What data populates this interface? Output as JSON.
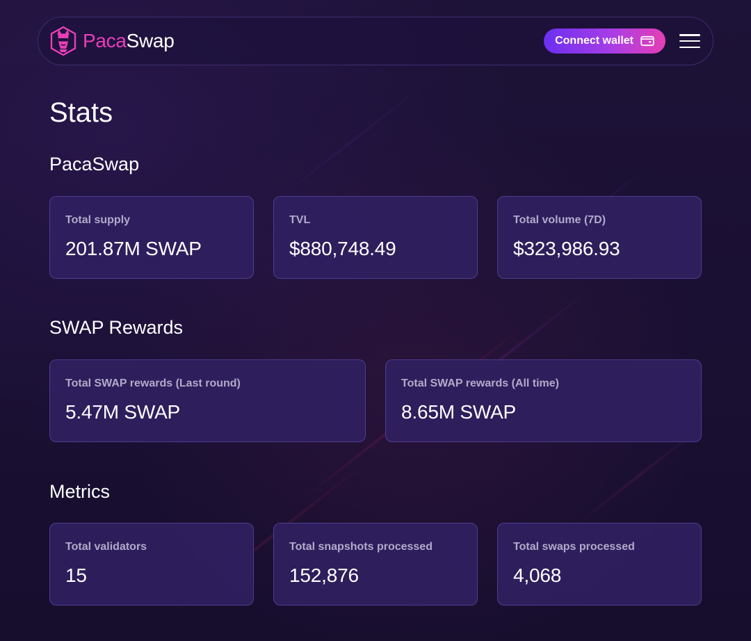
{
  "header": {
    "brand_prefix": "Paca",
    "brand_suffix": "Swap",
    "logo_icon": "alpaca-logo-icon",
    "connect_label": "Connect wallet",
    "wallet_icon": "wallet-icon",
    "menu_icon": "hamburger-menu-icon"
  },
  "page": {
    "title": "Stats"
  },
  "sections": {
    "pacaswap": {
      "title": "PacaSwap",
      "cards": [
        {
          "label": "Total supply",
          "value": "201.87M SWAP"
        },
        {
          "label": "TVL",
          "value": "$880,748.49"
        },
        {
          "label": "Total volume (7D)",
          "value": "$323,986.93"
        }
      ]
    },
    "rewards": {
      "title": "SWAP Rewards",
      "cards": [
        {
          "label": "Total SWAP rewards (Last round)",
          "value": "5.47M SWAP"
        },
        {
          "label": "Total SWAP rewards (All time)",
          "value": "8.65M SWAP"
        }
      ]
    },
    "metrics": {
      "title": "Metrics",
      "cards": [
        {
          "label": "Total validators",
          "value": "15"
        },
        {
          "label": "Total snapshots processed",
          "value": "152,876"
        },
        {
          "label": "Total swaps processed",
          "value": "4,068"
        }
      ]
    }
  },
  "colors": {
    "background": "#1c1136",
    "card_background": "#302060",
    "card_border": "#4d3d8e",
    "brand_pink": "#e93eb7",
    "button_gradient_start": "#6b2ff0",
    "button_gradient_end": "#e63fb4",
    "label_text": "#b2aacb"
  }
}
